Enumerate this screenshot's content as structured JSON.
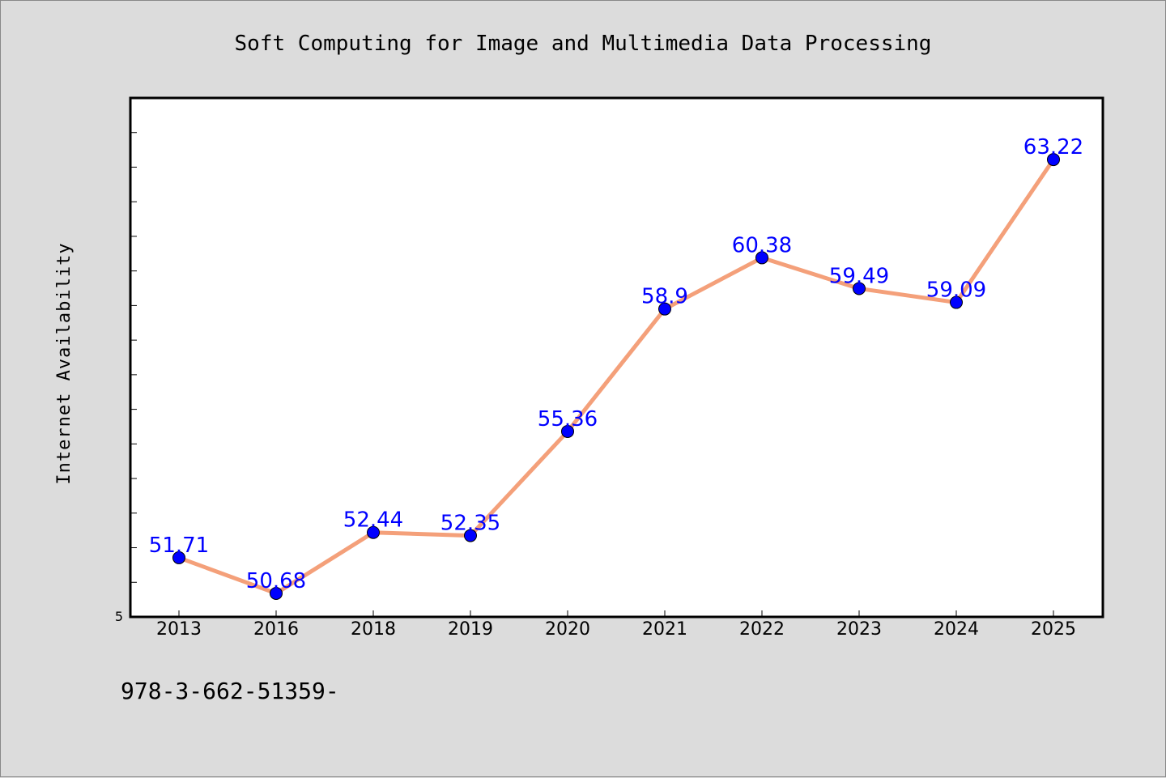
{
  "chart_data": {
    "type": "line",
    "title": "Soft Computing for Image and Multimedia Data Processing",
    "xlabel": "",
    "ylabel": "Internet Availability",
    "categories": [
      "2013",
      "2016",
      "2018",
      "2019",
      "2020",
      "2021",
      "2022",
      "2023",
      "2024",
      "2025"
    ],
    "series": [
      {
        "values": [
          51.71,
          50.68,
          52.44,
          52.35,
          55.36,
          58.9,
          60.38,
          59.49,
          59.09,
          63.22
        ],
        "labels": [
          "51.71",
          "50.68",
          "52.44",
          "52.35",
          "55.36",
          "58.9",
          "60.38",
          "59.49",
          "59.09",
          "63.22"
        ]
      }
    ],
    "ylim": [
      50,
      65
    ],
    "y_tick_label": "5",
    "grid": false,
    "line_color": "#f4a07a",
    "marker_color": "#0000ff",
    "label_color": "#0000ff"
  },
  "footer": {
    "text": "978-3-662-51359-"
  },
  "colors": {
    "background": "#dcdcdc",
    "plot_background": "#ffffff"
  }
}
